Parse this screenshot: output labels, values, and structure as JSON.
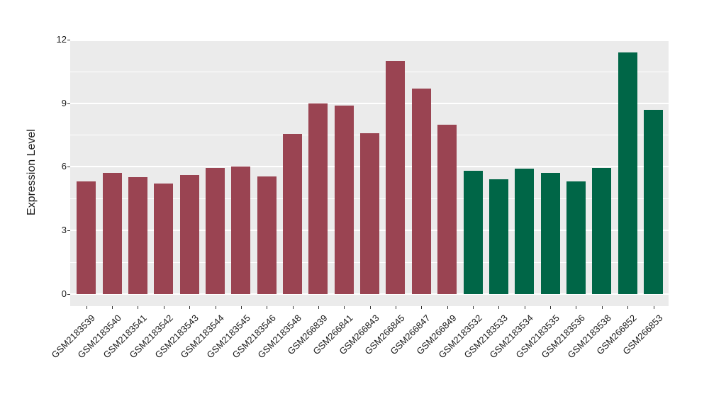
{
  "chart_data": {
    "type": "bar",
    "title": "",
    "xlabel": "",
    "ylabel": "Expression Level",
    "ylim": [
      0,
      12
    ],
    "yticks": [
      0,
      3,
      6,
      9,
      12
    ],
    "grid": true,
    "legend_position": "none",
    "panel_background": "#EBEBEB",
    "gridline_color": "#FFFFFF",
    "text_color": "#1A1A1A",
    "group_colors": {
      "red": "#9A4452",
      "green": "#006647"
    },
    "bars": [
      {
        "label": "GSM2183539",
        "value": 5.3,
        "group": "red"
      },
      {
        "label": "GSM2183540",
        "value": 5.7,
        "group": "red"
      },
      {
        "label": "GSM2183541",
        "value": 5.5,
        "group": "red"
      },
      {
        "label": "GSM2183542",
        "value": 5.2,
        "group": "red"
      },
      {
        "label": "GSM2183543",
        "value": 5.6,
        "group": "red"
      },
      {
        "label": "GSM2183544",
        "value": 5.95,
        "group": "red"
      },
      {
        "label": "GSM2183545",
        "value": 6.0,
        "group": "red"
      },
      {
        "label": "GSM2183546",
        "value": 5.55,
        "group": "red"
      },
      {
        "label": "GSM2183548",
        "value": 7.55,
        "group": "red"
      },
      {
        "label": "GSM266839",
        "value": 9.0,
        "group": "red"
      },
      {
        "label": "GSM266841",
        "value": 8.9,
        "group": "red"
      },
      {
        "label": "GSM266843",
        "value": 7.6,
        "group": "red"
      },
      {
        "label": "GSM266845",
        "value": 11.0,
        "group": "red"
      },
      {
        "label": "GSM266847",
        "value": 9.7,
        "group": "red"
      },
      {
        "label": "GSM266849",
        "value": 8.0,
        "group": "red"
      },
      {
        "label": "GSM2183532",
        "value": 5.8,
        "group": "green"
      },
      {
        "label": "GSM2183533",
        "value": 5.4,
        "group": "green"
      },
      {
        "label": "GSM2183534",
        "value": 5.9,
        "group": "green"
      },
      {
        "label": "GSM2183535",
        "value": 5.7,
        "group": "green"
      },
      {
        "label": "GSM2183536",
        "value": 5.3,
        "group": "green"
      },
      {
        "label": "GSM2183538",
        "value": 5.95,
        "group": "green"
      },
      {
        "label": "GSM266852",
        "value": 11.4,
        "group": "green"
      },
      {
        "label": "GSM266853",
        "value": 8.7,
        "group": "green"
      }
    ]
  }
}
